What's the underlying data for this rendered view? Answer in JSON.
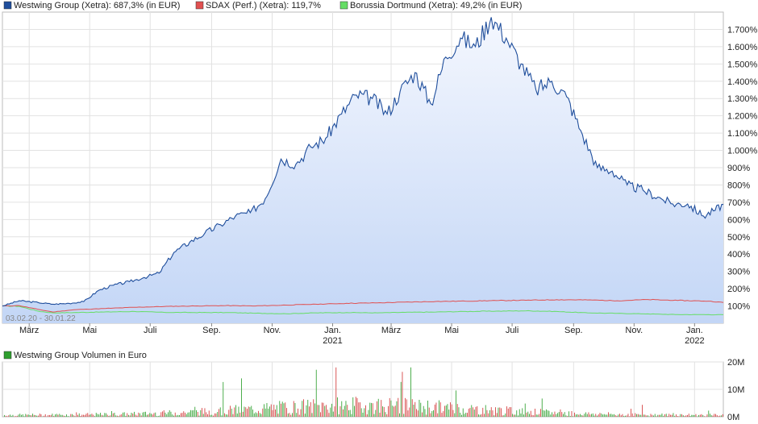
{
  "chart_data": [
    {
      "type": "area",
      "legend": [
        {
          "label": "Westwing Group (Xetra): 687,3% (in EUR)",
          "color": "#1f4e9c"
        },
        {
          "label": "SDAX (Perf.) (Xetra): 119,7%",
          "color": "#e05050"
        },
        {
          "label": "Borussia Dortmund (Xetra): 49,2% (in EUR)",
          "color": "#66dd66"
        }
      ],
      "date_range": "03.02.20 - 30.01.22",
      "x_ticks": [
        "März",
        "Mai",
        "Juli",
        "Sep.",
        "Nov.",
        "Jan.",
        "März",
        "Mai",
        "Juli",
        "Sep.",
        "Nov.",
        "Jan."
      ],
      "year_labels": [
        {
          "after_tick": 5,
          "label": "2021"
        },
        {
          "after_tick": 11,
          "label": "2022"
        }
      ],
      "y_ticks": [
        "100%",
        "200%",
        "300%",
        "400%",
        "500%",
        "600%",
        "700%",
        "800%",
        "900%",
        "1.000%",
        "1.100%",
        "1.200%",
        "1.300%",
        "1.400%",
        "1.500%",
        "1.600%",
        "1.700%"
      ],
      "ylim": [
        0,
        1800
      ],
      "x_start": "2020-02-03",
      "x_end": "2022-01-30",
      "grid": true,
      "legend_position": "top",
      "series": [
        {
          "name": "Westwing Group (Xetra)",
          "color": "#1f4e9c",
          "x": [
            "2020-02-03",
            "2020-02-20",
            "2020-03-10",
            "2020-03-25",
            "2020-04-10",
            "2020-04-25",
            "2020-05-10",
            "2020-05-25",
            "2020-06-10",
            "2020-06-25",
            "2020-07-10",
            "2020-07-25",
            "2020-08-10",
            "2020-08-25",
            "2020-09-10",
            "2020-09-25",
            "2020-10-10",
            "2020-10-25",
            "2020-11-10",
            "2020-11-25",
            "2020-12-10",
            "2020-12-25",
            "2021-01-10",
            "2021-01-25",
            "2021-02-10",
            "2021-02-25",
            "2021-03-10",
            "2021-03-25",
            "2021-04-10",
            "2021-04-25",
            "2021-05-10",
            "2021-05-25",
            "2021-06-10",
            "2021-06-25",
            "2021-07-10",
            "2021-07-25",
            "2021-08-10",
            "2021-08-25",
            "2021-09-10",
            "2021-09-25",
            "2021-10-10",
            "2021-10-25",
            "2021-11-10",
            "2021-11-25",
            "2021-12-10",
            "2021-12-25",
            "2022-01-10",
            "2022-01-20",
            "2022-01-30"
          ],
          "values": [
            100,
            130,
            120,
            110,
            115,
            125,
            190,
            220,
            240,
            265,
            290,
            410,
            470,
            520,
            570,
            620,
            640,
            720,
            950,
            920,
            1020,
            1070,
            1210,
            1320,
            1300,
            1210,
            1340,
            1450,
            1270,
            1540,
            1650,
            1600,
            1770,
            1650,
            1500,
            1350,
            1400,
            1310,
            1090,
            900,
            880,
            800,
            770,
            730,
            690,
            690,
            620,
            650,
            687
          ]
        },
        {
          "name": "SDAX (Perf.) (Xetra)",
          "color": "#e05050",
          "x": [
            "2020-02-03",
            "2020-02-20",
            "2020-03-10",
            "2020-03-25",
            "2020-04-15",
            "2020-05-15",
            "2020-06-15",
            "2020-07-15",
            "2020-08-15",
            "2020-09-15",
            "2020-10-15",
            "2020-11-15",
            "2020-12-15",
            "2021-01-15",
            "2021-02-15",
            "2021-03-15",
            "2021-04-15",
            "2021-05-15",
            "2021-06-15",
            "2021-07-15",
            "2021-08-15",
            "2021-09-15",
            "2021-10-15",
            "2021-11-15",
            "2021-12-15",
            "2022-01-15",
            "2022-01-30"
          ],
          "values": [
            100,
            102,
            80,
            65,
            78,
            85,
            92,
            97,
            100,
            102,
            100,
            105,
            110,
            115,
            118,
            122,
            126,
            128,
            131,
            133,
            136,
            135,
            130,
            137,
            132,
            128,
            119.7
          ]
        },
        {
          "name": "Borussia Dortmund (Xetra)",
          "color": "#66dd66",
          "x": [
            "2020-02-03",
            "2020-02-20",
            "2020-03-10",
            "2020-03-25",
            "2020-04-15",
            "2020-05-15",
            "2020-06-15",
            "2020-07-15",
            "2020-08-15",
            "2020-09-15",
            "2020-10-15",
            "2020-11-15",
            "2020-12-15",
            "2021-01-15",
            "2021-02-15",
            "2021-03-15",
            "2021-04-15",
            "2021-05-15",
            "2021-06-15",
            "2021-07-15",
            "2021-08-15",
            "2021-09-15",
            "2021-10-15",
            "2021-11-15",
            "2021-12-15",
            "2022-01-15",
            "2022-01-30"
          ],
          "values": [
            100,
            98,
            70,
            60,
            62,
            65,
            68,
            63,
            62,
            62,
            58,
            55,
            60,
            62,
            60,
            63,
            65,
            68,
            70,
            72,
            68,
            60,
            57,
            54,
            50,
            50,
            49.2
          ]
        }
      ]
    },
    {
      "type": "bar",
      "legend": [
        {
          "label": "Westwing Group Volumen in Euro",
          "color": "#2e9e2e"
        }
      ],
      "y_ticks": [
        "0M",
        "10M",
        "20M"
      ],
      "ylim": [
        0,
        20
      ],
      "grid": true,
      "colors": {
        "up": "#3aa63a",
        "down": "#d64545"
      },
      "seed": 7
    }
  ]
}
